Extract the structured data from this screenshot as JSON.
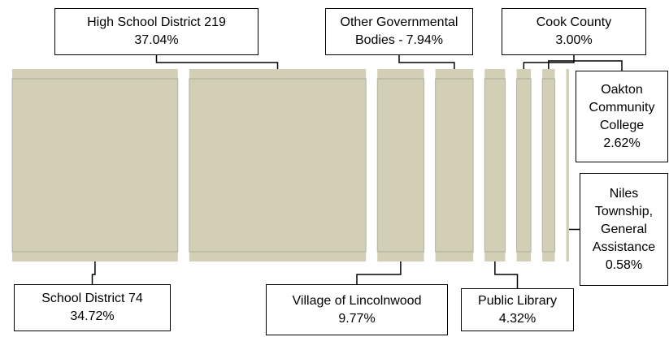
{
  "chart_data": {
    "type": "sliced-bill",
    "categories": [
      "School District 74",
      "High School District 219",
      "Village of Lincolnwood",
      "Other Governmental Bodies -",
      "Public Library",
      "Cook County",
      "Oakton Community College",
      "Niles Township, General Assistance"
    ],
    "values": [
      34.72,
      37.04,
      9.77,
      7.94,
      4.32,
      3.0,
      2.62,
      0.58
    ],
    "value_labels": [
      "34.72%",
      "37.04%",
      "9.77%",
      "7.94%",
      "4.32%",
      "3.00%",
      "2.62%",
      "0.58%"
    ],
    "color": "#d3cfb6"
  }
}
